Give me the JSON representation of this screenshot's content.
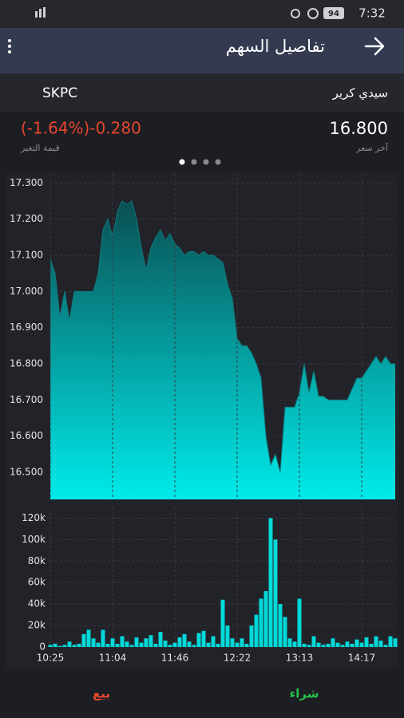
{
  "status_bar": {
    "battery": "94",
    "time": "7:32"
  },
  "header": {
    "title": "تفاصيل السهم"
  },
  "stock": {
    "name": "سيدي كرير",
    "symbol": "SKPC",
    "last_price": "16.800",
    "last_price_label": "آخر سعر",
    "change": "(-1.64%)-0.280",
    "change_label": "قيمة التغير"
  },
  "chart_data": [
    {
      "type": "area",
      "color": "#00e6e6",
      "grid": true,
      "ylim": [
        16.425,
        17.325
      ],
      "yticks": [
        {
          "value": 16.5,
          "label": "16.500"
        },
        {
          "value": 16.6,
          "label": "16.600"
        },
        {
          "value": 16.7,
          "label": "16.700"
        },
        {
          "value": 16.8,
          "label": "16.800"
        },
        {
          "value": 16.9,
          "label": "16.900"
        },
        {
          "value": 17.0,
          "label": "17.000"
        },
        {
          "value": 17.1,
          "label": "17.100"
        },
        {
          "value": 17.2,
          "label": "17.200"
        },
        {
          "value": 17.3,
          "label": "17.300"
        }
      ],
      "values": [
        17.09,
        17.05,
        16.93,
        17.0,
        16.92,
        17.0,
        17.0,
        17.0,
        17.0,
        17.0,
        17.05,
        17.17,
        17.2,
        17.15,
        17.22,
        17.25,
        17.24,
        17.25,
        17.2,
        17.12,
        17.06,
        17.12,
        17.15,
        17.17,
        17.14,
        17.16,
        17.13,
        17.12,
        17.1,
        17.11,
        17.11,
        17.1,
        17.11,
        17.1,
        17.1,
        17.09,
        17.08,
        17.02,
        16.98,
        16.87,
        16.85,
        16.85,
        16.83,
        16.8,
        16.76,
        16.6,
        16.52,
        16.55,
        16.5,
        16.68,
        16.68,
        16.68,
        16.72,
        16.8,
        16.72,
        16.78,
        16.71,
        16.71,
        16.7,
        16.7,
        16.7,
        16.7,
        16.7,
        16.73,
        16.76,
        16.76,
        16.78,
        16.8,
        16.82,
        16.8,
        16.82,
        16.8,
        16.8
      ]
    },
    {
      "type": "bar",
      "color": "#00d9d9",
      "grid": true,
      "ylim": [
        0,
        130000
      ],
      "yticks": [
        0,
        {
          "value": 20000,
          "label": "20k"
        },
        {
          "value": 40000,
          "label": "40k"
        },
        {
          "value": 60000,
          "label": "60k"
        },
        {
          "value": 80000,
          "label": "80k"
        },
        {
          "value": 100000,
          "label": "100k"
        },
        {
          "value": 120000,
          "label": "120k"
        }
      ],
      "categories": [
        "10:25",
        null,
        null,
        null,
        null,
        null,
        null,
        null,
        null,
        null,
        null,
        null,
        null,
        "11:04",
        null,
        null,
        null,
        null,
        null,
        null,
        null,
        null,
        null,
        null,
        null,
        null,
        "11:46",
        null,
        null,
        null,
        null,
        null,
        null,
        null,
        null,
        null,
        null,
        null,
        null,
        "12:22",
        null,
        null,
        null,
        null,
        null,
        null,
        null,
        null,
        null,
        null,
        null,
        null,
        "13:13",
        null,
        null,
        null,
        null,
        null,
        null,
        null,
        null,
        null,
        null,
        null,
        null,
        "14:17",
        null,
        null,
        null,
        null,
        null,
        null,
        null
      ],
      "values": [
        2000,
        3000,
        1000,
        2000,
        5000,
        2000,
        3000,
        12000,
        16000,
        8000,
        4000,
        16000,
        3000,
        8000,
        3000,
        10000,
        5000,
        2000,
        9000,
        4000,
        8000,
        11000,
        3000,
        14000,
        6000,
        2000,
        4000,
        9000,
        12000,
        5000,
        2000,
        13000,
        15000,
        4000,
        10000,
        3000,
        44000,
        20000,
        8000,
        4000,
        8000,
        3000,
        20000,
        30000,
        45000,
        52000,
        120000,
        100000,
        40000,
        28000,
        8000,
        5000,
        45000,
        3000,
        2000,
        10000,
        4000,
        2000,
        3000,
        8000,
        4000,
        2000,
        5000,
        3000,
        7000,
        4000,
        9000,
        3000,
        10000,
        6000,
        2000,
        10000,
        8000
      ]
    }
  ],
  "footer": {
    "buy": "شراء",
    "sell": "بيع"
  }
}
